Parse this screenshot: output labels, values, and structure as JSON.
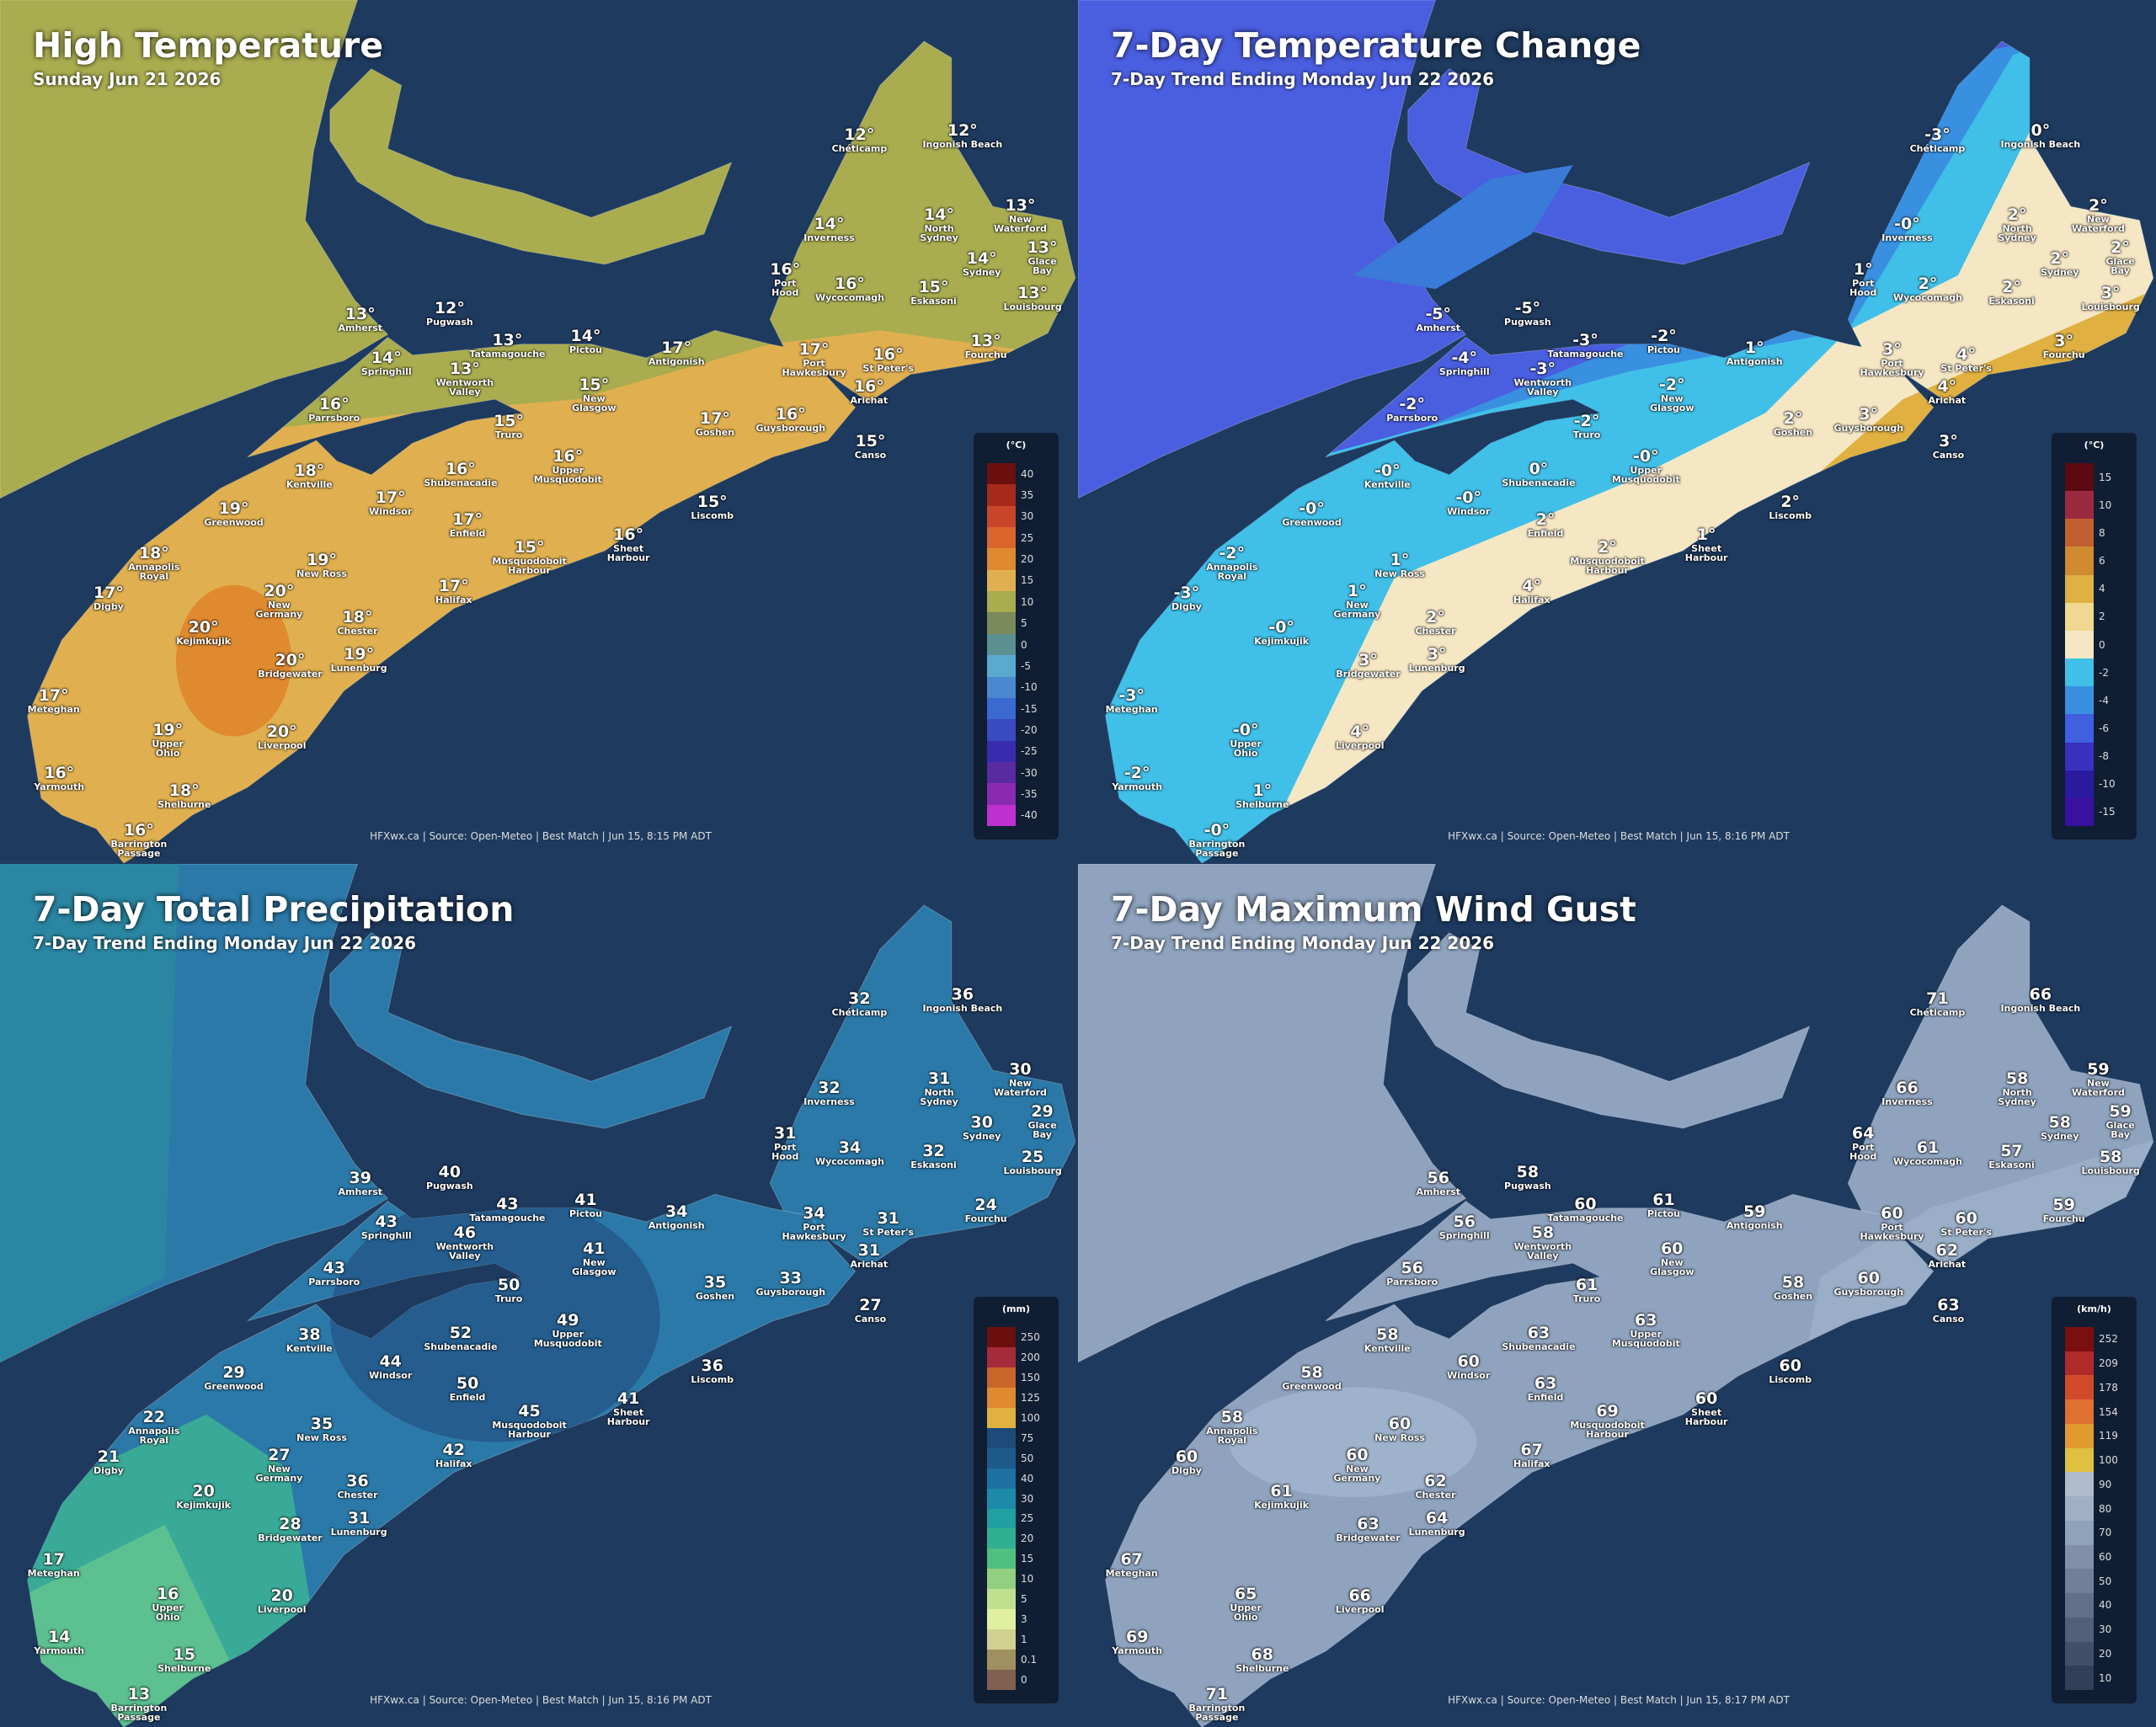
{
  "cities": [
    "Chéticamp",
    "Ingonish Beach",
    "Inverness",
    "North Sydney",
    "New Waterford",
    "Glace Bay",
    "Sydney",
    "Port Hood",
    "Wycocomagh",
    "Eskasoni",
    "Louisbourg",
    "Amherst",
    "Pugwash",
    "Tatamagouche",
    "Pictou",
    "Antigonish",
    "Springhill",
    "Wentworth Valley",
    "Port Hawkesbury",
    "St Peter's",
    "Arichat",
    "Fourchu",
    "Parrsboro",
    "New Glasgow",
    "Truro",
    "Goshen",
    "Guysborough",
    "Canso",
    "Kentville",
    "Shubenacadie",
    "Upper Musquodobit",
    "Windsor",
    "Greenwood",
    "Liscomb",
    "Enfield",
    "Musquodoboit Harbour",
    "Sheet Harbour",
    "Annapolis Royal",
    "New Ross",
    "Digby",
    "Halifax",
    "New Germany",
    "Chester",
    "Kejimkujik",
    "Bridgewater",
    "Lunenburg",
    "Meteghan",
    "Upper Ohio",
    "Liverpool",
    "Yarmouth",
    "Shelburne",
    "Barrington Passage"
  ],
  "panels": [
    {
      "title": "High Temperature",
      "subtitle": "Sunday Jun 21 2026",
      "unit": "(°C)",
      "values": [
        "12°",
        "12°",
        "14°",
        "14°",
        "13°",
        "13°",
        "14°",
        "16°",
        "16°",
        "15°",
        "13°",
        "13°",
        "12°",
        "13°",
        "14°",
        "17°",
        "14°",
        "13°",
        "17°",
        "16°",
        "16°",
        "13°",
        "16°",
        "15°",
        "15°",
        "17°",
        "16°",
        "15°",
        "18°",
        "16°",
        "16°",
        "17°",
        "19°",
        "15°",
        "17°",
        "15°",
        "16°",
        "18°",
        "19°",
        "17°",
        "17°",
        "20°",
        "18°",
        "20°",
        "20°",
        "19°",
        "17°",
        "19°",
        "20°",
        "16°",
        "18°",
        "16°"
      ],
      "legend_ticks": [
        40,
        35,
        30,
        25,
        20,
        15,
        10,
        5,
        0,
        -5,
        -10,
        -15,
        -20,
        -25,
        -30,
        -35,
        -40
      ],
      "legend_colors": [
        "#6b0f0f",
        "#a52a1a",
        "#c9452a",
        "#d9652a",
        "#e08a30",
        "#e0b050",
        "#a9ac4f",
        "#7a8a5a",
        "#5a9090",
        "#5aaad0",
        "#4a88d0",
        "#3a6ad0",
        "#3a4ac0",
        "#3a2ab0",
        "#5a2aa0",
        "#8a2ab0",
        "#c030d0"
      ],
      "footer": "HFXwx.ca | Source: Open-Meteo | Best Match | Jun 15, 8:15 PM ADT"
    },
    {
      "title": "7-Day Temperature Change",
      "subtitle": "7-Day Trend Ending Monday Jun 22 2026",
      "unit": "(°C)",
      "values": [
        "-3°",
        "0°",
        "-0°",
        "2°",
        "2°",
        "2°",
        "2°",
        "1°",
        "2°",
        "2°",
        "3°",
        "-5°",
        "-5°",
        "-3°",
        "-2°",
        "1°",
        "-4°",
        "-3°",
        "3°",
        "4°",
        "4°",
        "3°",
        "-2°",
        "-2°",
        "-2°",
        "2°",
        "3°",
        "3°",
        "-0°",
        "0°",
        "-0°",
        "-0°",
        "-0°",
        "2°",
        "2°",
        "2°",
        "1°",
        "-2°",
        "1°",
        "-3°",
        "4°",
        "1°",
        "2°",
        "-0°",
        "3°",
        "3°",
        "-3°",
        "-0°",
        "4°",
        "-2°",
        "1°",
        "-0°"
      ],
      "legend_ticks": [
        15,
        10,
        8,
        6,
        4,
        2,
        0,
        -2,
        -4,
        -6,
        -8,
        -10,
        -15
      ],
      "legend_colors": [
        "#5a0a10",
        "#9a2a40",
        "#c06030",
        "#d08a30",
        "#e0b040",
        "#f0d890",
        "#f5e6c4",
        "#40c0e8",
        "#3a90e0",
        "#4060e0",
        "#3a30c0",
        "#2a1aa0",
        "#3a10a0"
      ],
      "footer": "HFXwx.ca | Source: Open-Meteo | Best Match | Jun 15, 8:16 PM ADT"
    },
    {
      "title": "7-Day Total Precipitation",
      "subtitle": "7-Day Trend Ending Monday Jun 22 2026",
      "unit": "(mm)",
      "values": [
        "32",
        "36",
        "32",
        "31",
        "30",
        "29",
        "30",
        "31",
        "34",
        "32",
        "25",
        "39",
        "40",
        "43",
        "41",
        "34",
        "43",
        "46",
        "34",
        "31",
        "31",
        "24",
        "43",
        "41",
        "50",
        "35",
        "33",
        "27",
        "38",
        "52",
        "49",
        "44",
        "29",
        "36",
        "50",
        "45",
        "41",
        "22",
        "35",
        "21",
        "42",
        "27",
        "36",
        "20",
        "28",
        "31",
        "17",
        "16",
        "20",
        "14",
        "15",
        "13"
      ],
      "legend_ticks": [
        250,
        200,
        150,
        125,
        100,
        75,
        50,
        40,
        30,
        25,
        20,
        15,
        10,
        5,
        3,
        1,
        0.1,
        0
      ],
      "legend_colors": [
        "#6b0f0f",
        "#a52a3a",
        "#c9652a",
        "#e08a30",
        "#e0b040",
        "#1e4a7a",
        "#1e5a8a",
        "#1e70a0",
        "#1e8aaa",
        "#20a0a0",
        "#30b090",
        "#50c080",
        "#90d080",
        "#c0e090",
        "#e0f0a0",
        "#d0d090",
        "#a09060",
        "#806050"
      ],
      "footer": "HFXwx.ca | Source: Open-Meteo | Best Match | Jun 15, 8:16 PM ADT"
    },
    {
      "title": "7-Day Maximum Wind Gust",
      "subtitle": "7-Day Trend Ending Monday Jun 22 2026",
      "unit": "(km/h)",
      "values": [
        "71",
        "66",
        "66",
        "58",
        "59",
        "59",
        "58",
        "64",
        "61",
        "57",
        "58",
        "56",
        "58",
        "60",
        "61",
        "59",
        "56",
        "58",
        "60",
        "60",
        "62",
        "59",
        "56",
        "60",
        "61",
        "58",
        "60",
        "63",
        "58",
        "63",
        "63",
        "60",
        "58",
        "60",
        "63",
        "69",
        "60",
        "58",
        "60",
        "60",
        "67",
        "60",
        "62",
        "61",
        "63",
        "64",
        "67",
        "65",
        "66",
        "69",
        "68",
        "71"
      ],
      "legend_ticks": [
        252,
        209,
        178,
        154,
        119,
        100,
        90,
        80,
        70,
        60,
        50,
        40,
        30,
        20,
        10
      ],
      "legend_colors": [
        "#7a0f0f",
        "#b02a2a",
        "#d04a2a",
        "#e07030",
        "#e09a30",
        "#e0c040",
        "#b0bccc",
        "#a0b0c4",
        "#90a2ba",
        "#8090aa",
        "#70809a",
        "#60708a",
        "#50607a",
        "#40506a",
        "#30405a"
      ],
      "footer": "HFXwx.ca | Source: Open-Meteo | Best Match | Jun 15, 8:17 PM ADT"
    }
  ]
}
